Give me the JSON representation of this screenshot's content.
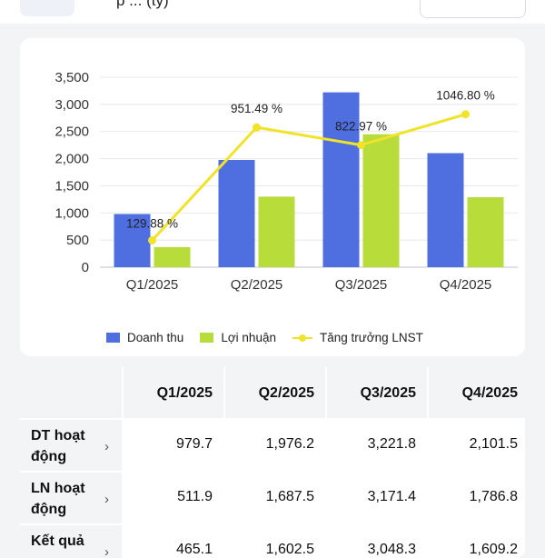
{
  "header": {
    "title": "p ... (tỷ)"
  },
  "chart_data": {
    "type": "bar",
    "categories": [
      "Q1/2025",
      "Q2/2025",
      "Q3/2025",
      "Q4/2025"
    ],
    "series": [
      {
        "name": "Doanh thu",
        "kind": "bar",
        "color": "#4f6ee0",
        "values": [
          979.7,
          1976.2,
          3221.8,
          2101.5
        ]
      },
      {
        "name": "Lợi nhuận",
        "kind": "bar",
        "color": "#b8dc3a",
        "values": [
          370,
          1300,
          2450,
          1290
        ]
      },
      {
        "name": "Tăng trưởng LNST",
        "kind": "line",
        "color": "#f0e32a",
        "values": [
          129.88,
          951.49,
          822.97,
          1046.8
        ],
        "labels": [
          "129.88 %",
          "951.49 %",
          "822.97 %",
          "1046.80 %"
        ]
      }
    ],
    "yticks": [
      "0",
      "500",
      "1,000",
      "1,500",
      "2,000",
      "2,500",
      "3,000",
      "3,500"
    ],
    "ylim": [
      0,
      3500
    ],
    "line_axis": "secondary (unlabeled)",
    "grid": true,
    "legend": "bottom"
  },
  "legend": {
    "revenue": "Doanh thu",
    "profit": "Lợi nhuận",
    "growth": "Tăng trưởng LNST"
  },
  "table": {
    "columns": [
      "Q1/2025",
      "Q2/2025",
      "Q3/2025",
      "Q4/2025"
    ],
    "rows": [
      {
        "label": "DT hoạt động",
        "values": [
          "979.7",
          "1,976.2",
          "3,221.8",
          "2,101.5"
        ]
      },
      {
        "label": "LN hoạt động",
        "values": [
          "511.9",
          "1,687.5",
          "3,171.4",
          "1,786.8"
        ]
      },
      {
        "label": "Kết quả",
        "values": [
          "465.1",
          "1,602.5",
          "3,048.3",
          "1,609.2"
        ]
      }
    ]
  },
  "colors": {
    "revenue": "#4f6ee0",
    "profit": "#b8dc3a",
    "growth": "#f0e32a",
    "background": "#f3f4f6"
  },
  "icons": {
    "row_chevron": "chevron-right-icon"
  }
}
